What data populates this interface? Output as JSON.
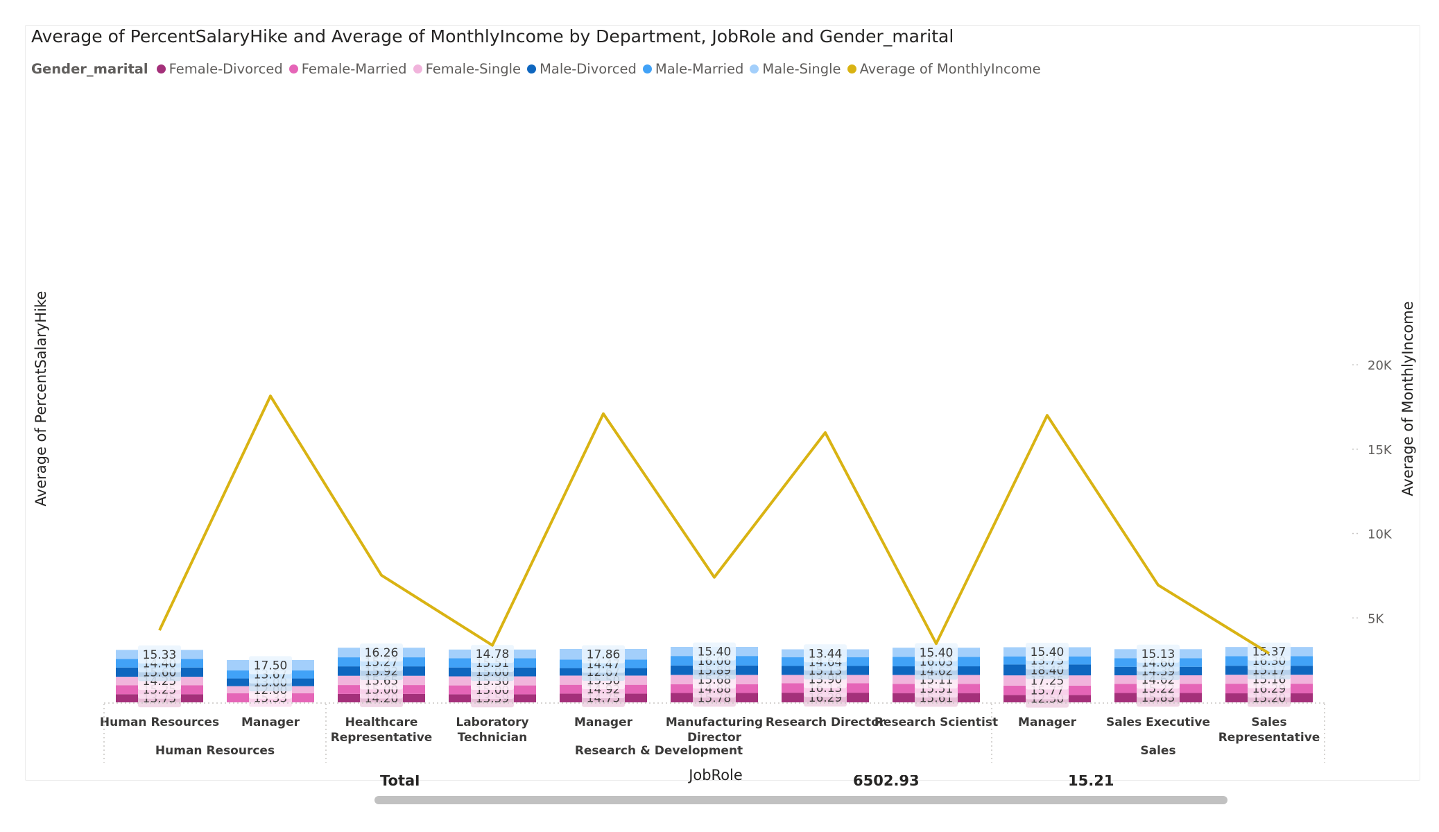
{
  "chart_data": {
    "type": "bar",
    "title": "Average of PercentSalaryHike and Average of MonthlyIncome by Department, JobRole and Gender_marital",
    "legend_title": "Gender_marital",
    "legend_position": "top-left",
    "xlabel": "JobRole",
    "ylabel": "Average of PercentSalaryHike",
    "y2label": "Average of MonthlyIncome",
    "y2_ticks": [
      "5K",
      "10K",
      "15K",
      "20K"
    ],
    "y2_tick_values": [
      5000,
      10000,
      15000,
      20000
    ],
    "y2lim": [
      0,
      20000
    ],
    "categories": [
      {
        "label": "Human Resources",
        "department": "Human Resources"
      },
      {
        "label": "Manager",
        "department": "Human Resources"
      },
      {
        "label": "Healthcare Representative",
        "department": "Research & Development"
      },
      {
        "label": "Laboratory Technician",
        "department": "Research & Development"
      },
      {
        "label": "Manager",
        "department": "Research & Development"
      },
      {
        "label": "Manufacturing Director",
        "department": "Research & Development"
      },
      {
        "label": "Research Director",
        "department": "Research & Development"
      },
      {
        "label": "Research Scientist",
        "department": "Research & Development"
      },
      {
        "label": "Manager",
        "department": "Sales"
      },
      {
        "label": "Sales Executive",
        "department": "Sales"
      },
      {
        "label": "Sales Representative",
        "department": "Sales"
      }
    ],
    "departments": [
      "Human Resources",
      "Research & Development",
      "Sales"
    ],
    "series": [
      {
        "name": "Female-Divorced",
        "color": "#a4307a",
        "label_bg": "#efd1e3",
        "values": [
          13.75,
          null,
          14.2,
          13.59,
          14.75,
          15.78,
          16.29,
          15.61,
          12.5,
          15.83,
          15.2
        ]
      },
      {
        "name": "Female-Married",
        "color": "#e565b7",
        "label_bg": "#fbe0f1",
        "values": [
          15.25,
          15.33,
          15.0,
          15.0,
          14.92,
          14.88,
          16.13,
          15.51,
          15.77,
          15.22,
          16.29
        ]
      },
      {
        "name": "Female-Single",
        "color": "#f1b4dc",
        "label_bg": "#fdf0f8",
        "values": [
          14.25,
          12.0,
          15.65,
          15.3,
          15.5,
          15.68,
          13.9,
          15.11,
          17.25,
          14.62,
          15.16
        ]
      },
      {
        "name": "Male-Divorced",
        "color": "#0e66bf",
        "label_bg": "#cfe0f1",
        "values": [
          15.6,
          13.0,
          15.92,
          15.0,
          12.67,
          15.89,
          15.13,
          14.62,
          18.4,
          14.39,
          15.17
        ]
      },
      {
        "name": "Male-Married",
        "color": "#41a2f7",
        "label_bg": "#dcedfd",
        "values": [
          14.4,
          13.67,
          15.27,
          15.51,
          14.47,
          16.06,
          14.64,
          16.03,
          13.75,
          14.6,
          16.3
        ]
      },
      {
        "name": "Male-Single",
        "color": "#a3cffb",
        "label_bg": "#ebf5fe",
        "values": [
          15.33,
          17.5,
          16.26,
          14.78,
          17.86,
          15.4,
          13.44,
          15.4,
          15.4,
          15.13,
          15.37
        ]
      }
    ],
    "line_series": {
      "name": "Average of MonthlyIncome",
      "color": "#d9b313",
      "values": [
        4270,
        18150,
        7530,
        3380,
        17100,
        7410,
        15980,
        3480,
        17000,
        6950,
        2900
      ]
    },
    "grid": false
  },
  "footer_partial": {
    "total_label": "Total",
    "value_1": "6502.93",
    "value_2": "15.21"
  }
}
